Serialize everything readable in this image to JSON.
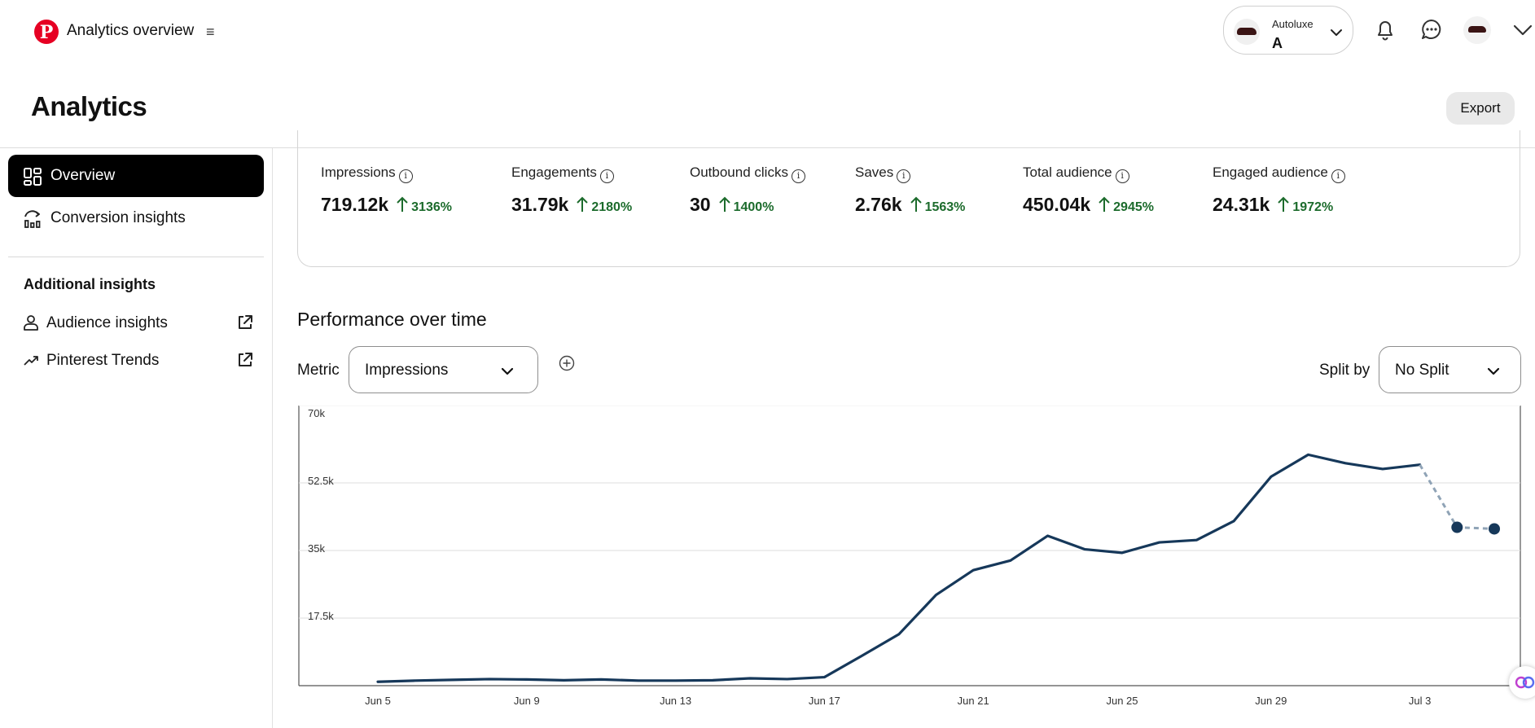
{
  "topbar": {
    "app_title": "Analytics overview",
    "menu_icon": "≡",
    "account": {
      "name": "Autoluxe",
      "letter": "A"
    }
  },
  "header": {
    "title": "Analytics",
    "export_label": "Export"
  },
  "sidebar": {
    "items": [
      {
        "label": "Overview",
        "icon": "grid-icon",
        "active": true
      },
      {
        "label": "Conversion insights",
        "icon": "conversion-icon",
        "active": false
      }
    ],
    "section_heading": "Additional insights",
    "external_items": [
      {
        "label": "Audience insights",
        "icon": "person-icon"
      },
      {
        "label": "Pinterest Trends",
        "icon": "trend-icon"
      }
    ]
  },
  "metrics": [
    {
      "label": "Impressions",
      "value": "719.12k",
      "change": "3136%"
    },
    {
      "label": "Engagements",
      "value": "31.79k",
      "change": "2180%"
    },
    {
      "label": "Outbound clicks",
      "value": "30",
      "change": "1400%"
    },
    {
      "label": "Saves",
      "value": "2.76k",
      "change": "1563%"
    },
    {
      "label": "Total audience",
      "value": "450.04k",
      "change": "2945%"
    },
    {
      "label": "Engaged audience",
      "value": "24.31k",
      "change": "1972%"
    }
  ],
  "colors": {
    "positive": "#1c6b2c",
    "line": "#16385a",
    "dashed": "#8fa3b6",
    "brand": "#e60023"
  },
  "performance": {
    "title": "Performance over time",
    "metric_label": "Metric",
    "metric_value": "Impressions",
    "split_label": "Split by",
    "split_value": "No Split"
  },
  "chart_data": {
    "type": "line",
    "ylim": [
      0,
      70000
    ],
    "yticks": [
      {
        "value": 17500,
        "label": "17.5k"
      },
      {
        "value": 35000,
        "label": "35k"
      },
      {
        "value": 52500,
        "label": "52.5k"
      },
      {
        "value": 70000,
        "label": "70k"
      }
    ],
    "x_tick_labels": [
      "Jun 5",
      "Jun 9",
      "Jun 13",
      "Jun 17",
      "Jun 21",
      "Jun 25",
      "Jun 29",
      "Jul 3"
    ],
    "x": [
      "Jun 5",
      "Jun 6",
      "Jun 7",
      "Jun 8",
      "Jun 9",
      "Jun 10",
      "Jun 11",
      "Jun 12",
      "Jun 13",
      "Jun 14",
      "Jun 15",
      "Jun 16",
      "Jun 17",
      "Jun 18",
      "Jun 19",
      "Jun 20",
      "Jun 21",
      "Jun 22",
      "Jun 23",
      "Jun 24",
      "Jun 25",
      "Jun 26",
      "Jun 27",
      "Jun 28",
      "Jun 29",
      "Jun 30",
      "Jul 1",
      "Jul 2",
      "Jul 3",
      "Jul 4",
      "Jul 5"
    ],
    "series": [
      {
        "values": [
          1000,
          1300,
          1500,
          1700,
          1600,
          1400,
          1600,
          1300,
          1300,
          1400,
          1900,
          1700,
          2200,
          7700,
          13300,
          23500,
          29900,
          32400,
          38800,
          35300,
          34400,
          37100,
          37700,
          42600,
          54100,
          59800,
          57600,
          56100,
          57200,
          41000,
          40600
        ],
        "projected_from_index": 28
      }
    ]
  }
}
